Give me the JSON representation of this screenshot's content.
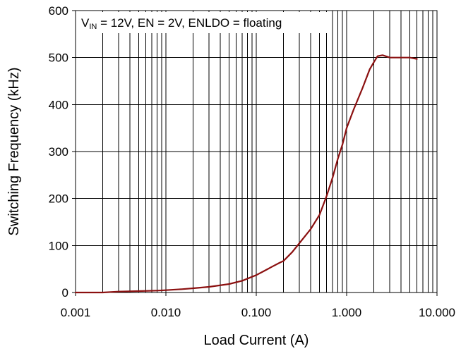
{
  "chart_data": {
    "type": "line",
    "title": "",
    "xlabel": "Load Current (A)",
    "ylabel": "Switching Frequency (kHz)",
    "xscale": "log",
    "xlim": [
      0.001,
      10
    ],
    "ylim": [
      0,
      600
    ],
    "grid": true,
    "legend": "none",
    "x_ticks": [
      0.001,
      0.01,
      0.1,
      1,
      10
    ],
    "x_tick_labels": [
      "0.001",
      "0.010",
      "0.100",
      "1.000",
      "10.000"
    ],
    "y_ticks": [
      0,
      100,
      200,
      300,
      400,
      500,
      600
    ],
    "y_tick_labels": [
      "0",
      "100",
      "200",
      "300",
      "400",
      "500",
      "600"
    ],
    "annotation": {
      "v": "V",
      "sub": "IN",
      "rest": " = 12V, EN = 2V, ENLDO = floating"
    },
    "line_color": "#8b1010",
    "series": [
      {
        "x": [
          0.001,
          0.002,
          0.003,
          0.005,
          0.008,
          0.01,
          0.015,
          0.02,
          0.03,
          0.05,
          0.07,
          0.1,
          0.12,
          0.15,
          0.18,
          0.2,
          0.25,
          0.3,
          0.4,
          0.5,
          0.6,
          0.7,
          0.8,
          0.9,
          1.0,
          1.2,
          1.5,
          1.8,
          2.0,
          2.2,
          2.5,
          2.8,
          3.0,
          4.0,
          5.0,
          6.0
        ],
        "y": [
          0,
          0,
          2,
          3,
          4,
          5,
          7,
          9,
          12,
          18,
          25,
          37,
          45,
          55,
          63,
          67,
          86,
          105,
          135,
          165,
          205,
          245,
          285,
          315,
          350,
          390,
          435,
          475,
          490,
          503,
          505,
          502,
          500,
          500,
          500,
          497
        ]
      }
    ]
  }
}
